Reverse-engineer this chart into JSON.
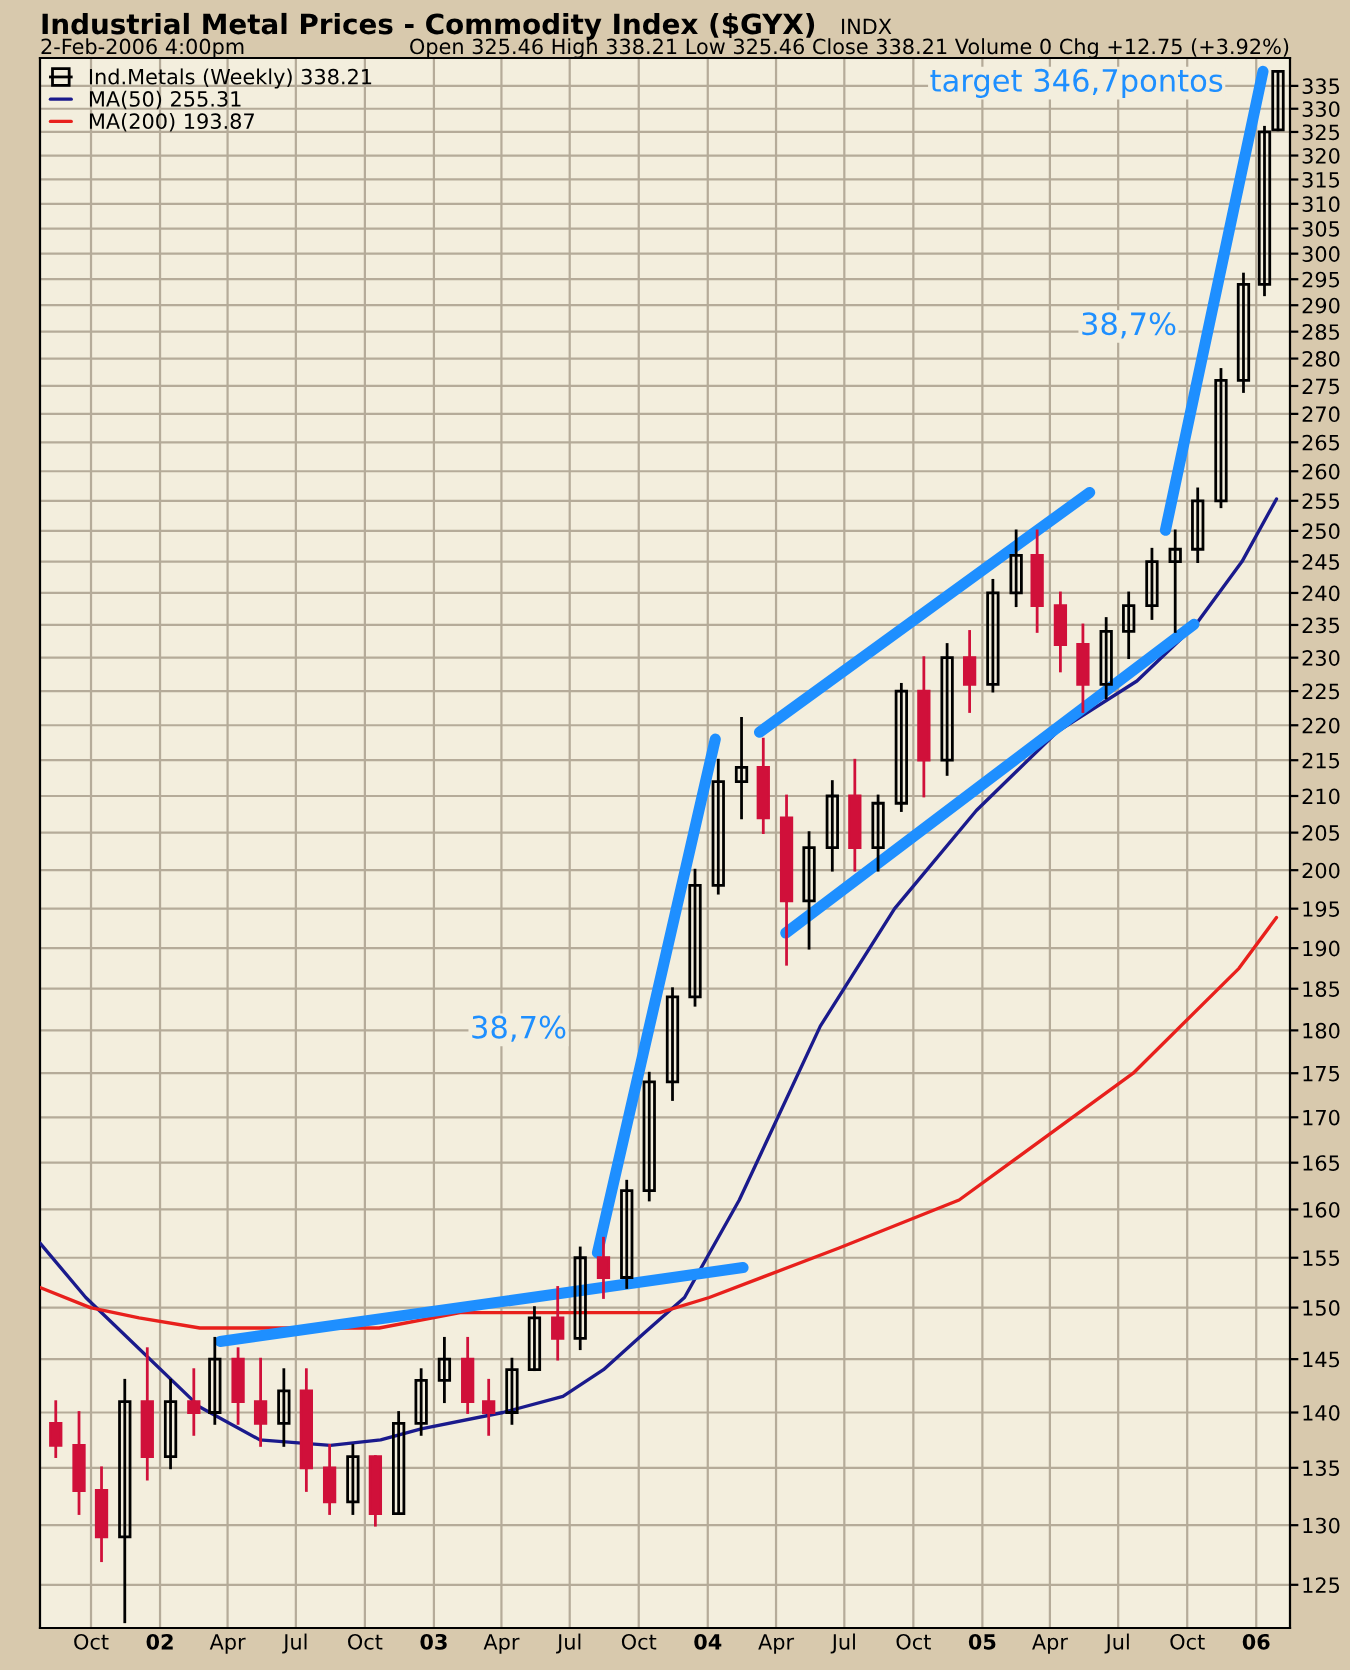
{
  "chart_data": {
    "type": "candlestick",
    "title": "Industrial Metal Prices - Commodity Index ($GYX)",
    "subtitle": "2-Feb-2006 4:00pm",
    "annotations": [
      "INDX",
      "Open 325.46 High 338.21 Low 325.46 Close 338.21 Volume 0 Chg +12.75 (+3.92%)",
      "38,7%",
      "38,7%",
      "target 346,7pontos"
    ],
    "series": [
      {
        "name": "Ind.Metals (Weekly) 338.21",
        "x": [
          "2001-08-15",
          "2001-09-15",
          "2001-10-15",
          "2001-11-15",
          "2001-12-15",
          "2002-01-15",
          "2002-02-15",
          "2002-03-15",
          "2002-04-15",
          "2002-05-15",
          "2002-06-15",
          "2002-07-15",
          "2002-08-15",
          "2002-09-15",
          "2002-10-15",
          "2002-11-15",
          "2002-12-15",
          "2003-01-15",
          "2003-02-15",
          "2003-03-15",
          "2003-04-15",
          "2003-05-15",
          "2003-06-15",
          "2003-07-15",
          "2003-08-15",
          "2003-09-15",
          "2003-10-15",
          "2003-11-15",
          "2003-12-15",
          "2004-01-15",
          "2004-02-15",
          "2004-03-15",
          "2004-04-15",
          "2004-05-15",
          "2004-06-15",
          "2004-07-15",
          "2004-08-15",
          "2004-09-15",
          "2004-10-15",
          "2004-11-15",
          "2004-12-15",
          "2005-01-15",
          "2005-02-15",
          "2005-03-15",
          "2005-04-15",
          "2005-05-15",
          "2005-06-15",
          "2005-07-15",
          "2005-08-15",
          "2005-09-15",
          "2005-10-15",
          "2005-11-15",
          "2005-12-15",
          "2006-01-12",
          "2006-01-30"
        ],
        "ohlc": [
          [
            139,
            141,
            136,
            137
          ],
          [
            137,
            140,
            131,
            133
          ],
          [
            133,
            135,
            127,
            129
          ],
          [
            129,
            143,
            122,
            141
          ],
          [
            141,
            146,
            134,
            136
          ],
          [
            136,
            143,
            135,
            141
          ],
          [
            141,
            144,
            138,
            140
          ],
          [
            140,
            147,
            139,
            145
          ],
          [
            145,
            146,
            139,
            141
          ],
          [
            141,
            145,
            137,
            139
          ],
          [
            139,
            144,
            137,
            142
          ],
          [
            142,
            144,
            133,
            135
          ],
          [
            135,
            137,
            131,
            132
          ],
          [
            132,
            137,
            131,
            136
          ],
          [
            136,
            136,
            130,
            131
          ],
          [
            131,
            140,
            131,
            139
          ],
          [
            139,
            144,
            138,
            143
          ],
          [
            143,
            147,
            141,
            145
          ],
          [
            145,
            147,
            140,
            141
          ],
          [
            141,
            143,
            138,
            140
          ],
          [
            140,
            145,
            139,
            144
          ],
          [
            144,
            150,
            144,
            149
          ],
          [
            149,
            152,
            145,
            147
          ],
          [
            147,
            156,
            146,
            155
          ],
          [
            155,
            157,
            151,
            153
          ],
          [
            153,
            163,
            152,
            162
          ],
          [
            162,
            175,
            161,
            174
          ],
          [
            174,
            185,
            172,
            184
          ],
          [
            184,
            200,
            183,
            198
          ],
          [
            198,
            215,
            197,
            212
          ],
          [
            212,
            221,
            207,
            214
          ],
          [
            214,
            218,
            205,
            207
          ],
          [
            207,
            210,
            188,
            196
          ],
          [
            196,
            205,
            190,
            203
          ],
          [
            203,
            212,
            200,
            210
          ],
          [
            210,
            215,
            200,
            203
          ],
          [
            203,
            210,
            200,
            209
          ],
          [
            209,
            226,
            208,
            225
          ],
          [
            225,
            230,
            210,
            215
          ],
          [
            215,
            232,
            213,
            230
          ],
          [
            230,
            234,
            222,
            226
          ],
          [
            226,
            242,
            225,
            240
          ],
          [
            240,
            250,
            238,
            246
          ],
          [
            246,
            250,
            234,
            238
          ],
          [
            238,
            240,
            228,
            232
          ],
          [
            232,
            235,
            222,
            226
          ],
          [
            226,
            236,
            224,
            234
          ],
          [
            234,
            240,
            230,
            238
          ],
          [
            238,
            247,
            236,
            245
          ],
          [
            245,
            250,
            234,
            247
          ],
          [
            247,
            257,
            245,
            255
          ],
          [
            255,
            278,
            254,
            276
          ],
          [
            276,
            296,
            274,
            294
          ],
          [
            294,
            326,
            292,
            325
          ],
          [
            325.46,
            338.21,
            325.46,
            338.21
          ]
        ],
        "colors": [
          "#d0103a",
          "#d0103a",
          "#d0103a",
          "#000000",
          "#d0103a",
          "#000000",
          "#d0103a",
          "#000000",
          "#d0103a",
          "#d0103a",
          "#000000",
          "#d0103a",
          "#d0103a",
          "#000000",
          "#d0103a",
          "#000000",
          "#000000",
          "#000000",
          "#d0103a",
          "#d0103a",
          "#000000",
          "#000000",
          "#d0103a",
          "#000000",
          "#d0103a",
          "#000000",
          "#000000",
          "#000000",
          "#000000",
          "#000000",
          "#000000",
          "#d0103a",
          "#d0103a",
          "#000000",
          "#000000",
          "#d0103a",
          "#000000",
          "#000000",
          "#d0103a",
          "#000000",
          "#d0103a",
          "#000000",
          "#000000",
          "#d0103a",
          "#d0103a",
          "#d0103a",
          "#000000",
          "#000000",
          "#000000",
          "#000000",
          "#000000",
          "#000000",
          "#000000",
          "#000000",
          "#000000"
        ]
      },
      {
        "type": "line",
        "name": "MA(50) 255.31",
        "color": "#1a1a8c",
        "x": [
          "2001-07-25",
          "2001-09-24",
          "2002-02-23",
          "2002-05-14",
          "2002-08-16",
          "2002-10-22",
          "2002-12-15",
          "2003-04-03",
          "2003-06-22",
          "2003-08-15",
          "2003-10-08",
          "2003-12-01",
          "2004-02-12",
          "2004-05-30",
          "2004-09-06",
          "2004-12-24",
          "2005-04-10",
          "2005-07-26",
          "2005-10-12",
          "2005-12-13",
          "2006-01-28"
        ],
        "values": [
          156.5,
          151,
          140.5,
          137.5,
          137,
          137.5,
          138.5,
          140,
          141.5,
          144,
          147.5,
          151,
          161,
          180.5,
          195,
          208,
          219,
          226.5,
          235,
          245,
          255.31
        ]
      },
      {
        "type": "line",
        "name": "MA(200) 193.87",
        "color": "#e8201c",
        "x": [
          "2001-07-25",
          "2001-09-30",
          "2001-12-04",
          "2002-02-23",
          "2002-10-20",
          "2003-02-05",
          "2003-10-29",
          "2004-01-03",
          "2004-06-24",
          "2004-12-01",
          "2005-07-21",
          "2005-12-09",
          "2006-01-28"
        ],
        "values": [
          152,
          150,
          149,
          148,
          148,
          149.5,
          149.5,
          151,
          156,
          161,
          175,
          187.5,
          193.87
        ]
      },
      {
        "type": "line",
        "color": "#1e8fff",
        "x": [
          "2002-03-22",
          "2004-02-17"
        ],
        "values": [
          146.7,
          154
        ]
      },
      {
        "type": "line",
        "color": "#1e8fff",
        "x": [
          "2003-08-07",
          "2004-01-11"
        ],
        "values": [
          155.5,
          218
        ]
      },
      {
        "type": "line",
        "color": "#1e8fff",
        "x": [
          "2004-03-10",
          "2005-05-24"
        ],
        "values": [
          219,
          256.4
        ]
      },
      {
        "type": "line",
        "color": "#1e8fff",
        "x": [
          "2004-04-14",
          "2005-10-10"
        ],
        "values": [
          191.9,
          235.1
        ]
      },
      {
        "type": "line",
        "color": "#1e8fff",
        "x": [
          "2005-09-02",
          "2006-01-10"
        ],
        "values": [
          250.1,
          338.2
        ]
      }
    ],
    "log": "y",
    "ylim": [
      121.5,
      341.2
    ],
    "yticks": [
      125,
      130,
      135,
      140,
      145,
      150,
      155,
      160,
      165,
      170,
      175,
      180,
      185,
      190,
      195,
      200,
      205,
      210,
      215,
      220,
      225,
      230,
      235,
      240,
      245,
      250,
      255,
      260,
      265,
      270,
      275,
      280,
      285,
      290,
      295,
      300,
      305,
      310,
      315,
      320,
      325,
      330,
      335
    ],
    "xlim": [
      "2001-07-25",
      "2006-02-15"
    ],
    "xticks": [
      {
        "value": "2001-10-01",
        "label": "Oct"
      },
      {
        "value": "2002-01-01",
        "label": "02"
      },
      {
        "value": "2002-04-01",
        "label": "Apr"
      },
      {
        "value": "2002-07-01",
        "label": "Jul"
      },
      {
        "value": "2002-10-01",
        "label": "Oct"
      },
      {
        "value": "2003-01-01",
        "label": "03"
      },
      {
        "value": "2003-04-01",
        "label": "Apr"
      },
      {
        "value": "2003-07-01",
        "label": "Jul"
      },
      {
        "value": "2003-10-01",
        "label": "Oct"
      },
      {
        "value": "2004-01-01",
        "label": "04"
      },
      {
        "value": "2004-04-01",
        "label": "Apr"
      },
      {
        "value": "2004-07-01",
        "label": "Jul"
      },
      {
        "value": "2004-10-01",
        "label": "Oct"
      },
      {
        "value": "2005-01-01",
        "label": "05"
      },
      {
        "value": "2005-04-01",
        "label": "Apr"
      },
      {
        "value": "2005-07-01",
        "label": "Jul"
      },
      {
        "value": "2005-10-01",
        "label": "Oct"
      },
      {
        "value": "2006-01-01",
        "label": "06"
      }
    ],
    "grid": true,
    "legend": "top left"
  }
}
